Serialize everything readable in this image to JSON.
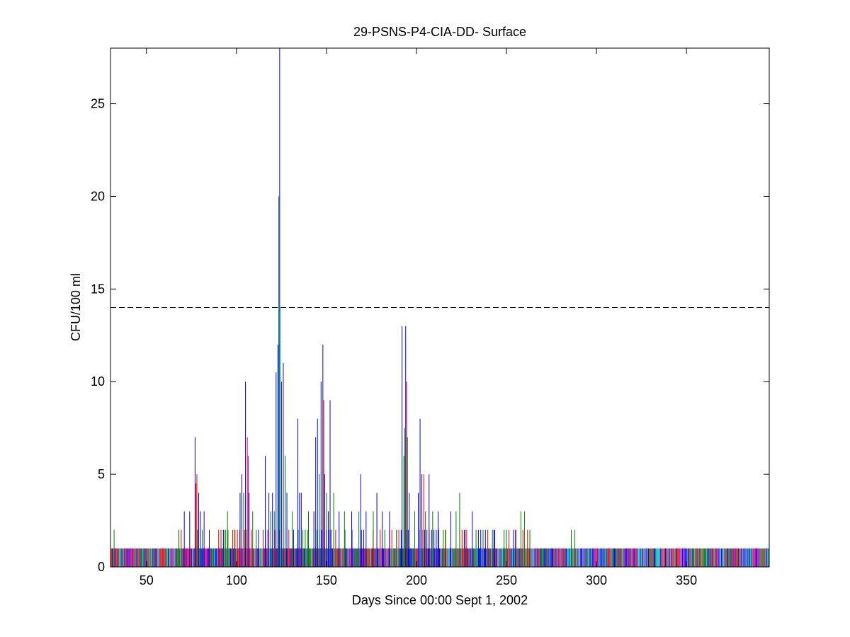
{
  "chart_data": {
    "type": "bar",
    "title": "29-PSNS-P4-CIA-DD- Surface",
    "xlabel": "Days Since 00:00 Sept 1, 2002",
    "ylabel": "CFU/100 ml",
    "xlim": [
      30,
      396
    ],
    "ylim": [
      0,
      28
    ],
    "xticks": [
      50,
      100,
      150,
      200,
      250,
      300,
      350
    ],
    "yticks": [
      0,
      5,
      10,
      15,
      20,
      25
    ],
    "grid": false,
    "threshold": {
      "y": 14,
      "style": "dashed",
      "color": "#000000"
    },
    "series_colors": [
      "#0000ff",
      "#008000",
      "#ff0000",
      "#00bfbf",
      "#bf00bf"
    ],
    "peaks": [
      {
        "x": 32,
        "y": 2,
        "color": "#008000"
      },
      {
        "x": 68,
        "y": 2,
        "color": "#008000"
      },
      {
        "x": 71,
        "y": 3,
        "color": "#0000ff"
      },
      {
        "x": 74,
        "y": 3,
        "color": "#0000ff"
      },
      {
        "x": 77,
        "y": 7,
        "color": "#0000ff"
      },
      {
        "x": 77.5,
        "y": 4.5,
        "color": "#ff0000"
      },
      {
        "x": 78,
        "y": 5,
        "color": "#ff0000"
      },
      {
        "x": 79,
        "y": 4,
        "color": "#0000ff"
      },
      {
        "x": 80,
        "y": 3,
        "color": "#0000ff"
      },
      {
        "x": 82,
        "y": 3,
        "color": "#0000ff"
      },
      {
        "x": 93,
        "y": 2,
        "color": "#008000"
      },
      {
        "x": 95,
        "y": 3,
        "color": "#008000"
      },
      {
        "x": 99,
        "y": 2,
        "color": "#008000"
      },
      {
        "x": 102,
        "y": 4,
        "color": "#0000ff"
      },
      {
        "x": 103,
        "y": 5,
        "color": "#0000ff"
      },
      {
        "x": 104,
        "y": 4,
        "color": "#008000"
      },
      {
        "x": 105,
        "y": 10,
        "color": "#0000ff"
      },
      {
        "x": 106,
        "y": 7,
        "color": "#ff0000"
      },
      {
        "x": 106.5,
        "y": 6,
        "color": "#bf00bf"
      },
      {
        "x": 107,
        "y": 4,
        "color": "#0000ff"
      },
      {
        "x": 109,
        "y": 3,
        "color": "#008000"
      },
      {
        "x": 111,
        "y": 2,
        "color": "#008000"
      },
      {
        "x": 116,
        "y": 6,
        "color": "#0000ff"
      },
      {
        "x": 118,
        "y": 4,
        "color": "#0000ff"
      },
      {
        "x": 119,
        "y": 3,
        "color": "#008000"
      },
      {
        "x": 120,
        "y": 4,
        "color": "#0000ff"
      },
      {
        "x": 121,
        "y": 3,
        "color": "#008000"
      },
      {
        "x": 122,
        "y": 10.5,
        "color": "#0000ff"
      },
      {
        "x": 123,
        "y": 12,
        "color": "#0000ff"
      },
      {
        "x": 123.5,
        "y": 20,
        "color": "#008000"
      },
      {
        "x": 124,
        "y": 28,
        "color": "#0000ff"
      },
      {
        "x": 124.3,
        "y": 14,
        "color": "#00bfbf"
      },
      {
        "x": 125,
        "y": 10,
        "color": "#0000ff"
      },
      {
        "x": 126,
        "y": 11,
        "color": "#0000ff"
      },
      {
        "x": 127,
        "y": 6,
        "color": "#008000"
      },
      {
        "x": 128,
        "y": 4,
        "color": "#0000ff"
      },
      {
        "x": 131,
        "y": 3,
        "color": "#008000"
      },
      {
        "x": 134,
        "y": 8,
        "color": "#0000ff"
      },
      {
        "x": 135,
        "y": 4,
        "color": "#0000ff"
      },
      {
        "x": 136,
        "y": 4,
        "color": "#0000ff"
      },
      {
        "x": 140,
        "y": 3,
        "color": "#008000"
      },
      {
        "x": 143,
        "y": 3,
        "color": "#0000ff"
      },
      {
        "x": 144,
        "y": 7,
        "color": "#0000ff"
      },
      {
        "x": 145,
        "y": 8,
        "color": "#0000ff"
      },
      {
        "x": 146,
        "y": 5,
        "color": "#008000"
      },
      {
        "x": 147,
        "y": 10,
        "color": "#0000ff"
      },
      {
        "x": 148,
        "y": 12,
        "color": "#0000ff"
      },
      {
        "x": 148.5,
        "y": 9,
        "color": "#ff0000"
      },
      {
        "x": 149,
        "y": 5,
        "color": "#0000ff"
      },
      {
        "x": 150,
        "y": 4,
        "color": "#008000"
      },
      {
        "x": 151,
        "y": 3,
        "color": "#0000ff"
      },
      {
        "x": 152,
        "y": 9,
        "color": "#0000ff"
      },
      {
        "x": 154,
        "y": 4,
        "color": "#008000"
      },
      {
        "x": 157,
        "y": 3,
        "color": "#0000ff"
      },
      {
        "x": 160,
        "y": 3,
        "color": "#008000"
      },
      {
        "x": 164,
        "y": 3,
        "color": "#0000ff"
      },
      {
        "x": 168,
        "y": 3,
        "color": "#008000"
      },
      {
        "x": 169,
        "y": 5,
        "color": "#0000ff"
      },
      {
        "x": 172,
        "y": 3,
        "color": "#0000ff"
      },
      {
        "x": 176,
        "y": 3,
        "color": "#008000"
      },
      {
        "x": 178,
        "y": 4,
        "color": "#0000ff"
      },
      {
        "x": 181,
        "y": 3,
        "color": "#0000ff"
      },
      {
        "x": 185,
        "y": 3,
        "color": "#0000ff"
      },
      {
        "x": 189,
        "y": 2,
        "color": "#008000"
      },
      {
        "x": 192,
        "y": 13,
        "color": "#0000ff"
      },
      {
        "x": 193,
        "y": 6,
        "color": "#008000"
      },
      {
        "x": 193.5,
        "y": 7.5,
        "color": "#008000"
      },
      {
        "x": 194,
        "y": 13,
        "color": "#0000ff"
      },
      {
        "x": 194.5,
        "y": 10,
        "color": "#ff0000"
      },
      {
        "x": 195,
        "y": 7,
        "color": "#008000"
      },
      {
        "x": 196,
        "y": 4,
        "color": "#0000ff"
      },
      {
        "x": 199,
        "y": 3,
        "color": "#008000"
      },
      {
        "x": 201,
        "y": 4,
        "color": "#0000ff"
      },
      {
        "x": 202,
        "y": 8,
        "color": "#0000ff"
      },
      {
        "x": 203,
        "y": 5,
        "color": "#0000ff"
      },
      {
        "x": 204,
        "y": 5,
        "color": "#ff0000"
      },
      {
        "x": 205,
        "y": 3,
        "color": "#008000"
      },
      {
        "x": 207,
        "y": 5,
        "color": "#0000ff"
      },
      {
        "x": 209,
        "y": 3,
        "color": "#008000"
      },
      {
        "x": 212,
        "y": 3,
        "color": "#0000ff"
      },
      {
        "x": 216,
        "y": 2,
        "color": "#008000"
      },
      {
        "x": 219,
        "y": 3,
        "color": "#0000ff"
      },
      {
        "x": 222,
        "y": 3,
        "color": "#008000"
      },
      {
        "x": 224,
        "y": 4,
        "color": "#008000"
      },
      {
        "x": 227,
        "y": 2,
        "color": "#0000ff"
      },
      {
        "x": 231,
        "y": 3,
        "color": "#0000ff"
      },
      {
        "x": 237,
        "y": 2,
        "color": "#008000"
      },
      {
        "x": 243,
        "y": 2,
        "color": "#0000ff"
      },
      {
        "x": 250,
        "y": 2,
        "color": "#008000"
      },
      {
        "x": 255,
        "y": 2,
        "color": "#0000ff"
      },
      {
        "x": 258,
        "y": 3,
        "color": "#008000"
      },
      {
        "x": 260,
        "y": 3,
        "color": "#008000"
      },
      {
        "x": 263,
        "y": 2,
        "color": "#008000"
      },
      {
        "x": 286,
        "y": 2,
        "color": "#008000"
      },
      {
        "x": 288,
        "y": 2,
        "color": "#008000"
      }
    ]
  }
}
